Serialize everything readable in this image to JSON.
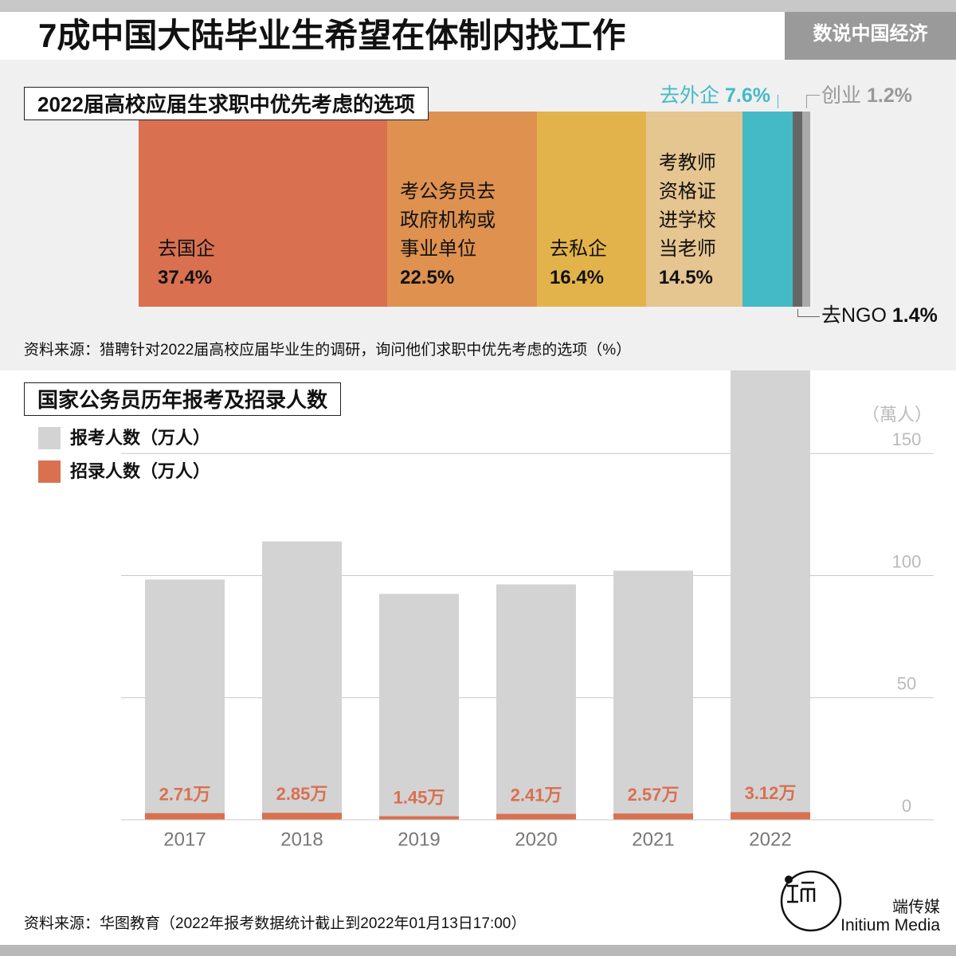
{
  "header": {
    "title": "7成中国大陆毕业生希望在体制内找工作",
    "tag": "数说中国经济"
  },
  "chart_data": [
    {
      "type": "stacked_bar_horizontal",
      "title": "2022届高校应届生求职中优先考虑的选项",
      "categories": [
        "去国企",
        "考公务员去\n政府机构或\n事业单位",
        "去私企",
        "考教师\n资格证\n进学校\n当老师",
        "去外企",
        "去NGO",
        "创业"
      ],
      "values": [
        37.4,
        22.5,
        16.4,
        14.5,
        7.6,
        1.4,
        1.2
      ],
      "value_labels": [
        "37.4%",
        "22.5%",
        "16.4%",
        "14.5%",
        "7.6%",
        "1.4%",
        "1.2%"
      ],
      "colors": [
        "#d97050",
        "#df9150",
        "#e3b34b",
        "#e5c590",
        "#44bac6",
        "#666666",
        "#aaaaaa"
      ],
      "source": "资料来源：猎聘针对2022届高校应届毕业生的调研，询问他们求职中优先考虑的选项（%）"
    },
    {
      "type": "bar",
      "title": "国家公务员历年报考及招录人数",
      "y_label": "（萬人）",
      "categories": [
        "2017",
        "2018",
        "2019",
        "2020",
        "2021",
        "2022"
      ],
      "series": [
        {
          "name": "报考人数（万人）",
          "color": "#d3d3d3",
          "values": [
            98.4,
            114.0,
            92.5,
            96.4,
            102.0,
            184.0
          ]
        },
        {
          "name": "招录人数（万人）",
          "color": "#d97050",
          "values": [
            2.71,
            2.85,
            1.45,
            2.41,
            2.57,
            3.12
          ],
          "value_labels": [
            "2.71万",
            "2.85万",
            "1.45万",
            "2.41万",
            "2.57万",
            "3.12万"
          ]
        }
      ],
      "ylim": [
        0,
        184
      ],
      "yticks": [
        0,
        50,
        100,
        150
      ],
      "grid": true,
      "source": "资料来源：华图教育（2022年报考数据统计截止到2022年01月13日17:00）"
    }
  ],
  "brand": {
    "name": "端传媒",
    "name_en": "Initium Media"
  }
}
